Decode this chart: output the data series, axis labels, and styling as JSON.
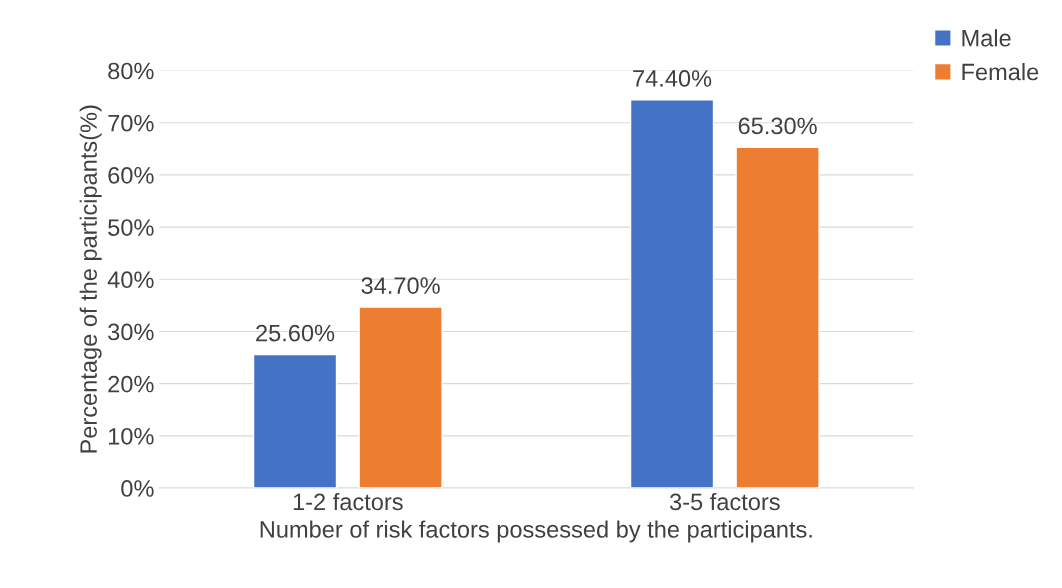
{
  "chart_data": {
    "type": "bar",
    "xlabel": "Number of risk factors possessed by the participants.",
    "ylabel": "Percentage of the participants(%)",
    "categories": [
      "1-2 factors",
      "3-5 factors"
    ],
    "series": [
      {
        "name": "Male",
        "color": "#4472c4",
        "values": [
          25.6,
          74.4
        ],
        "value_labels": [
          "25.60%",
          "74.40%"
        ]
      },
      {
        "name": "Female",
        "color": "#ed7d31",
        "values": [
          34.7,
          65.3
        ],
        "value_labels": [
          "34.70%",
          "65.30%"
        ]
      }
    ],
    "ylim": [
      0,
      80
    ],
    "yticks": [
      {
        "value": 0,
        "label": "0%"
      },
      {
        "value": 10,
        "label": "10%"
      },
      {
        "value": 20,
        "label": "20%"
      },
      {
        "value": 30,
        "label": "30%"
      },
      {
        "value": 40,
        "label": "40%"
      },
      {
        "value": 50,
        "label": "50%"
      },
      {
        "value": 60,
        "label": "60%"
      },
      {
        "value": 70,
        "label": "70%"
      },
      {
        "value": 80,
        "label": "80%"
      }
    ],
    "grid": "y",
    "legend": "top right"
  }
}
